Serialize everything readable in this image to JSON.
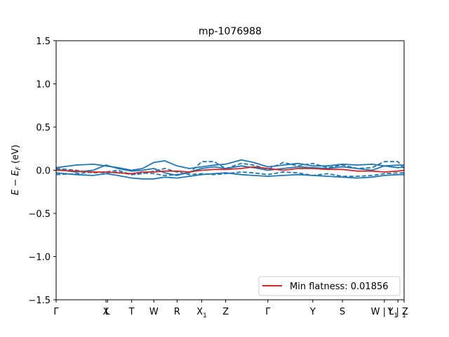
{
  "chart_data": {
    "type": "line",
    "title": "mp-1076988",
    "xlabel": "",
    "ylabel": "E − E_F (eV)",
    "ylabel_parts": {
      "base": "E − E",
      "sub": "F",
      "unit": " (eV)"
    },
    "ylim": [
      -1.5,
      1.5
    ],
    "xlim": [
      0,
      14.1
    ],
    "y_ticks": [
      {
        "value": 1.5,
        "label": "1.5"
      },
      {
        "value": 1.0,
        "label": "1.0"
      },
      {
        "value": 0.5,
        "label": "0.5"
      },
      {
        "value": 0.0,
        "label": "0.0"
      },
      {
        "value": -0.5,
        "label": "−0.5"
      },
      {
        "value": -1.0,
        "label": "−1.0"
      },
      {
        "value": -1.5,
        "label": "−1.5"
      }
    ],
    "x_ticks": [
      {
        "value": 0.0,
        "label": "Γ"
      },
      {
        "value": 2.02,
        "label": "X"
      },
      {
        "value": 2.08,
        "label": "L"
      },
      {
        "value": 3.06,
        "label": "T"
      },
      {
        "value": 3.96,
        "label": "W"
      },
      {
        "value": 4.9,
        "label": "R"
      },
      {
        "value": 5.9,
        "label": "X",
        "sub": "1"
      },
      {
        "value": 6.87,
        "label": "Z"
      },
      {
        "value": 8.58,
        "label": "Γ"
      },
      {
        "value": 10.4,
        "label": "Y"
      },
      {
        "value": 11.6,
        "label": "S"
      },
      {
        "value": 13.3,
        "label": "W | L",
        "sub": "1"
      },
      {
        "value": 13.85,
        "label": "Y | Z"
      },
      {
        "value": 14.1,
        "label": "",
        "sub": "1"
      }
    ],
    "legend": {
      "label": "Min flatness: 0.01856",
      "position": "lower-right",
      "color": "#d62728"
    },
    "colors": {
      "bands": "#1f77b4",
      "flat_band": "#d62728"
    },
    "series": [
      {
        "style": "solid",
        "color": "#1f77b4",
        "x": [
          0,
          0.8,
          1.5,
          2.02,
          2.5,
          3.06,
          3.5,
          3.96,
          4.4,
          4.9,
          5.4,
          5.9,
          6.4,
          6.87,
          7.5,
          8.0,
          8.58,
          9.2,
          9.8,
          10.4,
          11.0,
          11.6,
          12.2,
          12.8,
          13.3,
          13.85,
          14.1
        ],
        "y": [
          0.03,
          0.06,
          0.07,
          0.05,
          0.03,
          0.0,
          0.02,
          0.09,
          0.11,
          0.05,
          0.02,
          0.04,
          0.06,
          0.07,
          0.12,
          0.09,
          0.04,
          0.06,
          0.08,
          0.05,
          0.05,
          0.07,
          0.06,
          0.07,
          0.05,
          0.06,
          0.06
        ]
      },
      {
        "style": "solid",
        "color": "#1f77b4",
        "x": [
          0,
          0.8,
          1.5,
          2.02,
          2.5,
          3.06,
          3.5,
          3.96,
          4.4,
          4.9,
          5.4,
          5.9,
          6.4,
          6.87,
          7.5,
          8.0,
          8.58,
          9.2,
          9.8,
          10.4,
          11.0,
          11.6,
          12.2,
          12.8,
          13.3,
          13.85,
          14.1
        ],
        "y": [
          0.01,
          -0.02,
          0.0,
          0.06,
          0.02,
          -0.01,
          0.0,
          0.02,
          -0.03,
          -0.06,
          -0.02,
          0.02,
          0.04,
          0.02,
          0.05,
          0.03,
          0.0,
          0.02,
          0.04,
          0.03,
          0.02,
          0.04,
          0.02,
          0.0,
          0.05,
          0.03,
          0.04
        ]
      },
      {
        "style": "solid",
        "color": "#1f77b4",
        "x": [
          0,
          0.8,
          1.5,
          2.02,
          2.5,
          3.06,
          3.5,
          3.96,
          4.4,
          4.9,
          5.4,
          5.9,
          6.4,
          6.87,
          7.5,
          8.0,
          8.58,
          9.2,
          9.8,
          10.4,
          11.0,
          11.6,
          12.2,
          12.8,
          13.3,
          13.85,
          14.1
        ],
        "y": [
          -0.03,
          -0.05,
          -0.06,
          -0.04,
          -0.06,
          -0.09,
          -0.1,
          -0.1,
          -0.08,
          -0.09,
          -0.07,
          -0.05,
          -0.04,
          -0.03,
          -0.05,
          -0.06,
          -0.07,
          -0.06,
          -0.05,
          -0.06,
          -0.07,
          -0.08,
          -0.09,
          -0.08,
          -0.06,
          -0.05,
          -0.05
        ]
      },
      {
        "style": "dashed",
        "color": "#1f77b4",
        "x": [
          0,
          0.8,
          1.5,
          2.02,
          2.5,
          3.06,
          3.5,
          3.96,
          4.4,
          4.9,
          5.4,
          5.9,
          6.4,
          6.87,
          7.5,
          8.0,
          8.58,
          9.2,
          9.8,
          10.4,
          11.0,
          11.6,
          12.2,
          12.8,
          13.3,
          13.85,
          14.1
        ],
        "y": [
          -0.05,
          -0.04,
          -0.02,
          -0.03,
          -0.02,
          -0.05,
          -0.03,
          -0.04,
          -0.06,
          -0.05,
          -0.03,
          0.1,
          0.1,
          0.02,
          0.08,
          0.06,
          0.01,
          0.09,
          0.05,
          0.08,
          0.03,
          0.06,
          0.02,
          0.03,
          0.1,
          0.1,
          0.02
        ]
      },
      {
        "style": "dashed",
        "color": "#1f77b4",
        "x": [
          0,
          0.8,
          1.5,
          2.02,
          2.5,
          3.06,
          3.5,
          3.96,
          4.4,
          4.9,
          5.4,
          5.9,
          6.4,
          6.87,
          7.5,
          8.0,
          8.58,
          9.2,
          9.8,
          10.4,
          11.0,
          11.6,
          12.2,
          12.8,
          13.3,
          13.85,
          14.1
        ],
        "y": [
          0.02,
          0.0,
          -0.03,
          -0.02,
          0.0,
          -0.05,
          -0.04,
          -0.01,
          0.02,
          -0.02,
          -0.05,
          -0.04,
          -0.05,
          -0.04,
          -0.02,
          -0.03,
          -0.05,
          -0.02,
          -0.03,
          -0.06,
          -0.04,
          -0.07,
          -0.07,
          -0.06,
          -0.04,
          -0.03,
          -0.03
        ]
      },
      {
        "style": "solid",
        "color": "#d62728",
        "x": [
          0,
          0.8,
          1.5,
          2.02,
          2.5,
          3.06,
          3.5,
          3.96,
          4.4,
          4.9,
          5.4,
          5.9,
          6.4,
          6.87,
          7.5,
          8.0,
          8.58,
          9.2,
          9.8,
          10.4,
          11.0,
          11.6,
          12.2,
          12.8,
          13.3,
          13.85,
          14.1
        ],
        "y": [
          0.0,
          -0.01,
          -0.02,
          -0.02,
          -0.03,
          -0.04,
          -0.02,
          -0.02,
          -0.01,
          -0.01,
          -0.02,
          0.0,
          0.01,
          0.01,
          0.02,
          0.04,
          0.02,
          0.0,
          0.02,
          0.02,
          0.01,
          0.01,
          -0.01,
          -0.01,
          -0.02,
          -0.01,
          0.0
        ]
      }
    ]
  }
}
